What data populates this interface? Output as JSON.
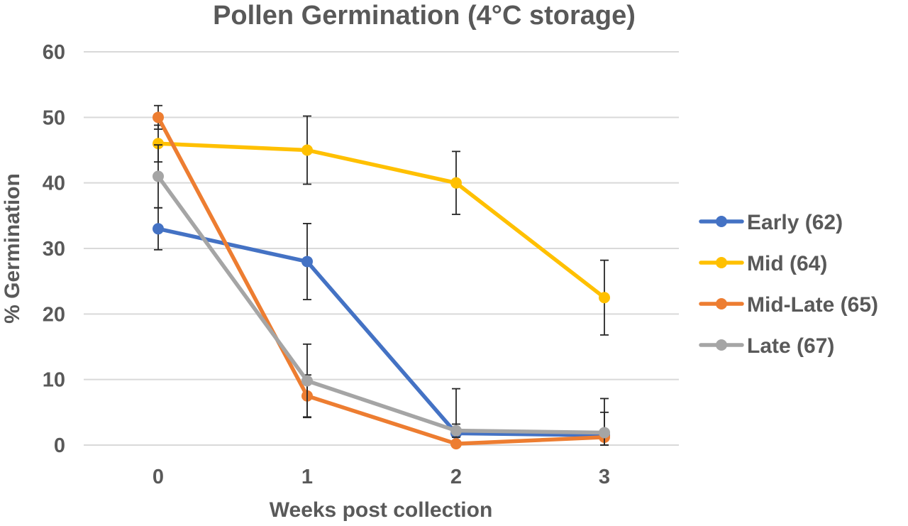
{
  "chart_data": {
    "type": "line",
    "title": "Pollen Germination (4°C storage)",
    "xlabel": "Weeks post collection",
    "ylabel": "% Germination",
    "categories": [
      "0",
      "1",
      "2",
      "3"
    ],
    "x": [
      0,
      1,
      2,
      3
    ],
    "ylim": [
      0,
      60
    ],
    "yticks": [
      0,
      10,
      20,
      30,
      40,
      50,
      60
    ],
    "grid": true,
    "legend_position": "right",
    "series": [
      {
        "name": "Early (62)",
        "color": "#4472c4",
        "values": [
          33,
          28,
          1.8,
          1.5
        ],
        "errors": [
          3.2,
          5.8,
          6.8,
          3.5
        ]
      },
      {
        "name": "Mid (64)",
        "color": "#ffc000",
        "values": [
          46,
          45,
          40,
          22.5
        ],
        "errors": [
          2.8,
          5.2,
          4.8,
          5.7
        ]
      },
      {
        "name": "Mid-Late (65)",
        "color": "#ed7d31",
        "values": [
          50,
          7.5,
          0.2,
          1.2
        ],
        "errors": [
          1.8,
          3.2,
          0.3,
          0.5
        ]
      },
      {
        "name": "Late (67)",
        "color": "#a5a5a5",
        "values": [
          41,
          9.8,
          2.2,
          1.9
        ],
        "errors": [
          4.8,
          5.6,
          1.0,
          5.2
        ]
      }
    ]
  }
}
